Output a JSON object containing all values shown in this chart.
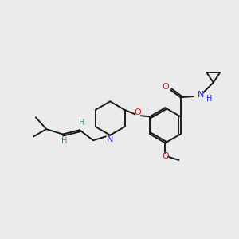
{
  "bg_color": "#ebebeb",
  "bond_color": "#1a1a1a",
  "N_color": "#2020cc",
  "O_color": "#cc2020",
  "H_color": "#4a8a8a",
  "fig_size": [
    3.0,
    3.0
  ],
  "dpi": 100,
  "xlim": [
    0,
    10
  ],
  "ylim": [
    0,
    10
  ]
}
